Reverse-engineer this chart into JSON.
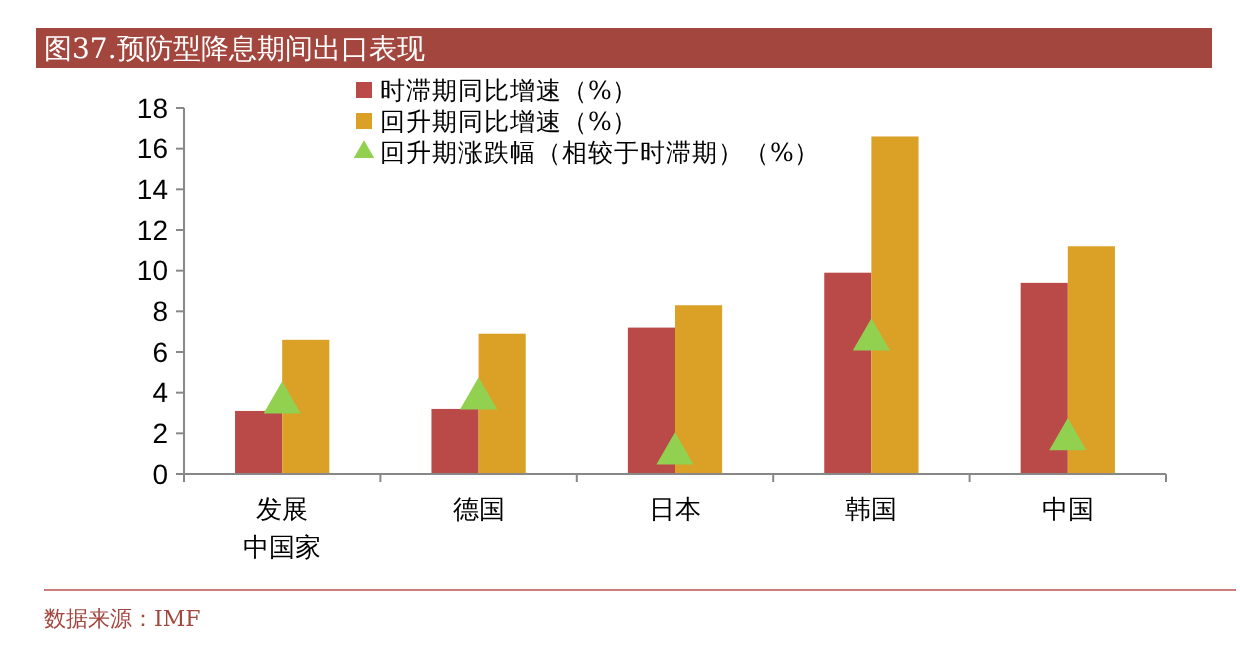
{
  "chart_data": {
    "type": "bar",
    "title": "图37.预防型降息期间出口表现",
    "categories": [
      "发展中国家",
      "德国",
      "日本",
      "韩国",
      "中国"
    ],
    "series": [
      {
        "name": "时滞期同比增速（%）",
        "color": "#b94a48",
        "values": [
          3.1,
          3.2,
          7.2,
          9.9,
          9.4
        ]
      },
      {
        "name": "回升期同比增速（%）",
        "color": "#dba026",
        "values": [
          6.6,
          6.9,
          8.3,
          16.6,
          11.2
        ]
      },
      {
        "name": "回升期涨跌幅（相较于时滞期）（%）",
        "type": "scatter",
        "marker": "triangle",
        "color": "#92d050",
        "x": [
          "发展中国家",
          "德国",
          "日本",
          "韩国",
          "中国"
        ],
        "values": [
          3.5,
          3.7,
          1.0,
          6.6,
          1.7
        ]
      }
    ],
    "ylim": [
      0,
      18
    ],
    "yticks": [
      0,
      2,
      4,
      6,
      8,
      10,
      12,
      14,
      16,
      18
    ],
    "grid": false,
    "legend": "top",
    "annotations": [
      "数据来源：IMF"
    ]
  }
}
